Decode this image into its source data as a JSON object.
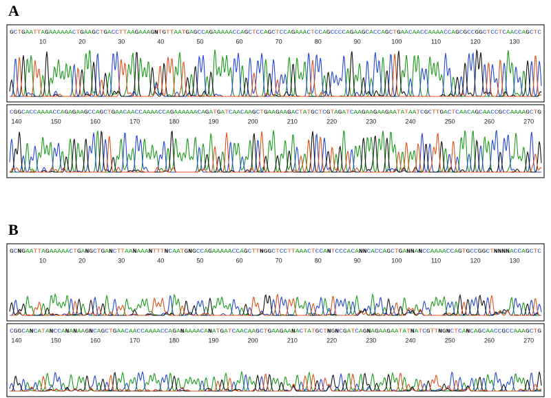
{
  "panels": [
    {
      "label": "A",
      "rows": [
        {
          "sequence": "GCTGAATTAGAAAAAACTGAAGCTGACCTTAAGAAAGNTGTTAATGAGCCAGAAAAACCAGCTCCAGCTCCAGAAACTCCAGCCCCAGAAGCACCAGCTGAACAACCAAAACCAGCGCCGGCTCCTCAACCAGCTC",
          "positions": [
            10,
            20,
            30,
            40,
            50,
            60,
            70,
            80,
            90,
            100,
            110,
            120,
            130
          ]
        },
        {
          "sequence": "CGGCACCAAAACCAGAGAAGCCAGCTGAACAACCAAAACCAGAAAAAACAGATGATCAACAAGCTGAAGAAGACTATGCTCGTAGATCAAGAAGAAGAATATAATCGCTTGACTCAACAGCAACCGCCAAAAGCTG",
          "positions": [
            140,
            150,
            160,
            170,
            180,
            190,
            200,
            210,
            220,
            230,
            240,
            250,
            260,
            270
          ]
        }
      ]
    },
    {
      "label": "B",
      "rows": [
        {
          "sequence": "GCNGAATTAGAAAAACTGANGCTGANCTTAANAAANTTTNCAATGNGCCAGAAAAACCAGCTTNGGCTCCTTAAACTCCANTCCCACANNCACCAGCTGANNANCCAAAACCAGTGCCGGCTNNNNACCAGCTC",
          "positions": [
            10,
            20,
            30,
            40,
            50,
            60,
            70,
            80,
            90,
            100,
            110,
            120,
            130
          ]
        },
        {
          "sequence": "CGGCANCATANCCANANAAGNCAGCTGAACAACCAAAACCAGANAAAACANATGATCAACAAGCTGAAGAANACTATGCTNGNCGATCAGNAGAAGAATATNATCGTTNGNCTCANCAGCAACCGCCAAAGCTG",
          "positions": [
            140,
            150,
            160,
            170,
            180,
            190,
            200,
            210,
            220,
            230,
            240,
            250,
            260,
            270
          ]
        }
      ]
    }
  ]
}
